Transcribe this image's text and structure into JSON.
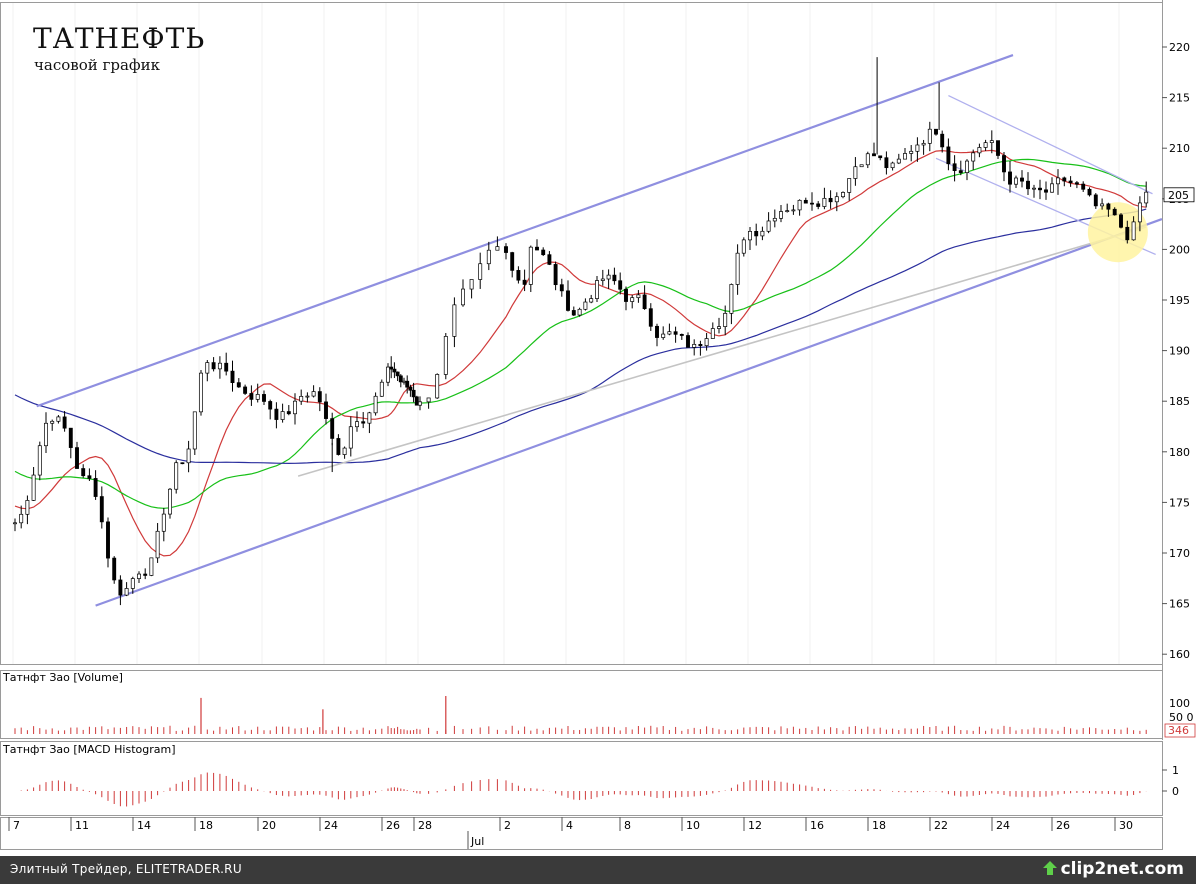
{
  "chart_data": {
    "type": "candlestick",
    "title": "ТАТНЕФТЬ",
    "subtitle": "часовой график",
    "price_axis": {
      "min": 160,
      "max": 220,
      "ticks": [
        "220",
        "215",
        "210",
        "205",
        "200",
        "195",
        "190",
        "185",
        "180",
        "175",
        "170",
        "165",
        "160"
      ],
      "last_price_label": "205"
    },
    "x_axis": {
      "day_labels": [
        "7",
        "11",
        "14",
        "18",
        "20",
        "24",
        "26",
        "28",
        "2",
        "4",
        "8",
        "10",
        "12",
        "16",
        "18",
        "22",
        "24",
        "26",
        "30"
      ],
      "month_label": "Jul"
    },
    "price_anchors": [
      {
        "day": 0,
        "price": 173
      },
      {
        "day": 0.6,
        "price": 184
      },
      {
        "day": 1.2,
        "price": 177
      },
      {
        "day": 1.7,
        "price": 166.5
      },
      {
        "day": 2.1,
        "price": 169
      },
      {
        "day": 2.7,
        "price": 179
      },
      {
        "day": 3.1,
        "price": 189
      },
      {
        "day": 3.8,
        "price": 186
      },
      {
        "day": 4.3,
        "price": 184
      },
      {
        "day": 4.8,
        "price": 186
      },
      {
        "day": 5.2,
        "price": 180
      },
      {
        "day": 5.5,
        "price": 184
      },
      {
        "day": 6.1,
        "price": 188
      },
      {
        "day": 6.7,
        "price": 186
      },
      {
        "day": 7.0,
        "price": 185
      },
      {
        "day": 7.5,
        "price": 195
      },
      {
        "day": 7.9,
        "price": 199
      },
      {
        "day": 8.3,
        "price": 197
      },
      {
        "day": 8.4,
        "price": 201
      },
      {
        "day": 9.1,
        "price": 194
      },
      {
        "day": 9.6,
        "price": 197
      },
      {
        "day": 10.1,
        "price": 195
      },
      {
        "day": 10.6,
        "price": 192
      },
      {
        "day": 11.1,
        "price": 190
      },
      {
        "day": 11.5,
        "price": 194
      },
      {
        "day": 12.0,
        "price": 202
      },
      {
        "day": 12.6,
        "price": 205
      },
      {
        "day": 13.3,
        "price": 206
      },
      {
        "day": 13.9,
        "price": 210
      },
      {
        "day": 14.3,
        "price": 208
      },
      {
        "day": 15.0,
        "price": 212
      },
      {
        "day": 15.3,
        "price": 209
      },
      {
        "day": 15.8,
        "price": 211
      },
      {
        "day": 16.2,
        "price": 207
      },
      {
        "day": 16.7,
        "price": 205
      },
      {
        "day": 17.2,
        "price": 206
      },
      {
        "day": 17.7,
        "price": 203
      },
      {
        "day": 18.1,
        "price": 201
      },
      {
        "day": 18.4,
        "price": 205
      }
    ],
    "spikes": [
      {
        "day": 14.05,
        "high": 219
      },
      {
        "day": 15.05,
        "high": 216.5
      },
      {
        "day": 5.1,
        "low": 178
      },
      {
        "day": 11.2,
        "low": 189.5
      }
    ],
    "series": [
      {
        "color": "#d03a3a",
        "smoothing": 12
      },
      {
        "color": "#18c018",
        "smoothing": 30
      },
      {
        "color": "#2b2f9e",
        "smoothing": 80
      }
    ],
    "trendlines": [
      {
        "color": "#8f8fe0",
        "width": 2.2,
        "from": {
          "day": 0.35,
          "price": 184.5
        },
        "to": {
          "day": 16.25,
          "price": 219.2
        }
      },
      {
        "color": "#8f8fe0",
        "width": 2.2,
        "from": {
          "day": 1.3,
          "price": 164.8
        },
        "to": {
          "day": 18.65,
          "price": 203
        }
      },
      {
        "color": "#c4c4c4",
        "width": 1.6,
        "from": {
          "day": 4.55,
          "price": 177.6
        },
        "to": {
          "day": 18.4,
          "price": 202.2
        }
      },
      {
        "color": "#b0b0ee",
        "width": 1.3,
        "from": {
          "day": 15.2,
          "price": 215.2
        },
        "to": {
          "day": 18.5,
          "price": 205.5
        }
      },
      {
        "color": "#b0b0ee",
        "width": 1.3,
        "from": {
          "day": 15.0,
          "price": 209
        },
        "to": {
          "day": 18.55,
          "price": 199.5
        }
      }
    ],
    "highlight": {
      "day": 17.95,
      "price": 201.7,
      "color": "#fff3a0"
    },
    "volume_panel": {
      "label": "Татнфт Зао [Volume]",
      "ticks": [
        "100",
        "50 0"
      ],
      "last_value_label": "346",
      "max": 100,
      "spikes": [
        {
          "day": 3.0,
          "value": 95
        },
        {
          "day": 4.95,
          "value": 65
        },
        {
          "day": 7.3,
          "value": 100
        }
      ],
      "color": "#d03a3a"
    },
    "macd_panel": {
      "label": "Татнфт Зао [MACD Histogram]",
      "ticks": [
        "1",
        "0"
      ],
      "color": "#d03a3a"
    }
  },
  "footer": {
    "source": "Элитный Трейдер, ELITETRADER.RU",
    "brand": "clip2net.com"
  }
}
